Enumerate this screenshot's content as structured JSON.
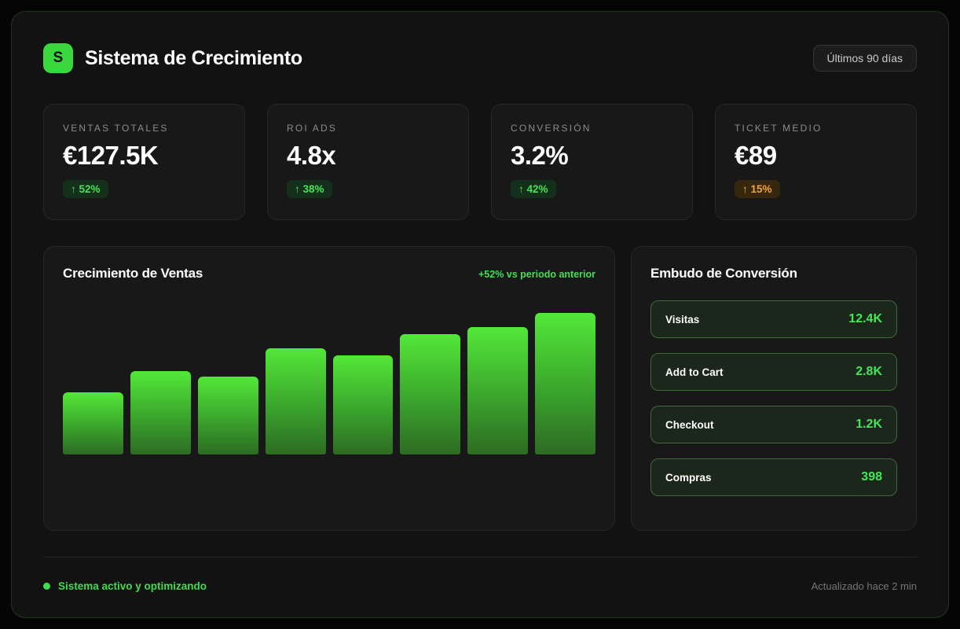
{
  "header": {
    "logo_letter": "S",
    "title": "Sistema de Crecimiento",
    "range_button_label": "Últimos 90 días"
  },
  "kpis": [
    {
      "label": "VENTAS TOTALES",
      "value": "€127.5K",
      "delta": "↑ 52%",
      "delta_tone": "green"
    },
    {
      "label": "ROI ADS",
      "value": "4.8x",
      "delta": "↑ 38%",
      "delta_tone": "green"
    },
    {
      "label": "CONVERSIÓN",
      "value": "3.2%",
      "delta": "↑ 42%",
      "delta_tone": "green"
    },
    {
      "label": "TICKET MEDIO",
      "value": "€89",
      "delta": "↑ 15%",
      "delta_tone": "amber"
    }
  ],
  "chart": {
    "title": "Crecimiento de Ventas",
    "comparison_note": "+52% vs periodo anterior"
  },
  "chart_data": {
    "type": "bar",
    "title": "Crecimiento de Ventas",
    "annotation": "+52% vs periodo anterior",
    "categories": [
      "1",
      "2",
      "3",
      "4",
      "5",
      "6",
      "7",
      "8"
    ],
    "values_pct_of_max": [
      44,
      59,
      55,
      75,
      70,
      85,
      90,
      100
    ],
    "xlabel": "",
    "ylabel": "",
    "axis_labels_shown": false,
    "grid": false,
    "legend": false,
    "bar_gradient_top": "#53e838",
    "bar_gradient_bottom": "#2d6b23",
    "note": "bars are unlabeled; values estimated as percent of tallest bar"
  },
  "funnel": {
    "title": "Embudo de Conversión",
    "stages": [
      {
        "label": "Visitas",
        "value": "12.4K"
      },
      {
        "label": "Add to Cart",
        "value": "2.8K"
      },
      {
        "label": "Checkout",
        "value": "1.2K"
      },
      {
        "label": "Compras",
        "value": "398"
      }
    ]
  },
  "footer": {
    "status_text": "Sistema activo y optimizando",
    "updated_text": "Actualizado hace 2 min"
  },
  "colors": {
    "accent_green": "#3fdd4b",
    "badge_green_text": "#45e258",
    "badge_green_bg": "#15301a",
    "badge_amber_text": "#f2a33c",
    "badge_amber_bg": "#38270f",
    "logo_bg": "#3bd73f",
    "container_border": "#1e3a1b",
    "card_bg": "#181818",
    "page_bg": "#050505"
  }
}
